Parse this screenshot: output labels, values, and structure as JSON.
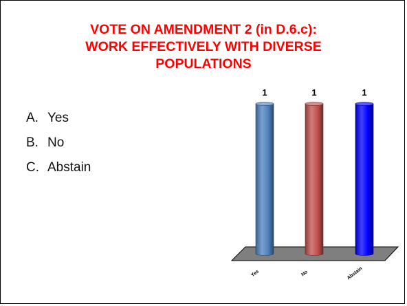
{
  "slide": {
    "title_lines": [
      "VOTE ON AMENDMENT 2 (in D.6.c):",
      "WORK EFFECTIVELY WITH DIVERSE",
      "POPULATIONS"
    ],
    "options": [
      {
        "letter": "A.",
        "text": "Yes"
      },
      {
        "letter": "B.",
        "text": "No"
      },
      {
        "letter": "C.",
        "text": "Abstain"
      }
    ],
    "colors": {
      "title": "#ff0000",
      "floor": "#7f7f7f"
    }
  },
  "chart_data": {
    "type": "bar",
    "categories": [
      "Yes",
      "No",
      "Abstain"
    ],
    "values": [
      1,
      1,
      1
    ],
    "data_labels": [
      "1",
      "1",
      "1"
    ],
    "colors": [
      "#4f81bd",
      "#c0504d",
      "#0000ff"
    ],
    "ylim": [
      0,
      1
    ],
    "style": "3d-cylinder",
    "grid": false,
    "legend": "none"
  }
}
